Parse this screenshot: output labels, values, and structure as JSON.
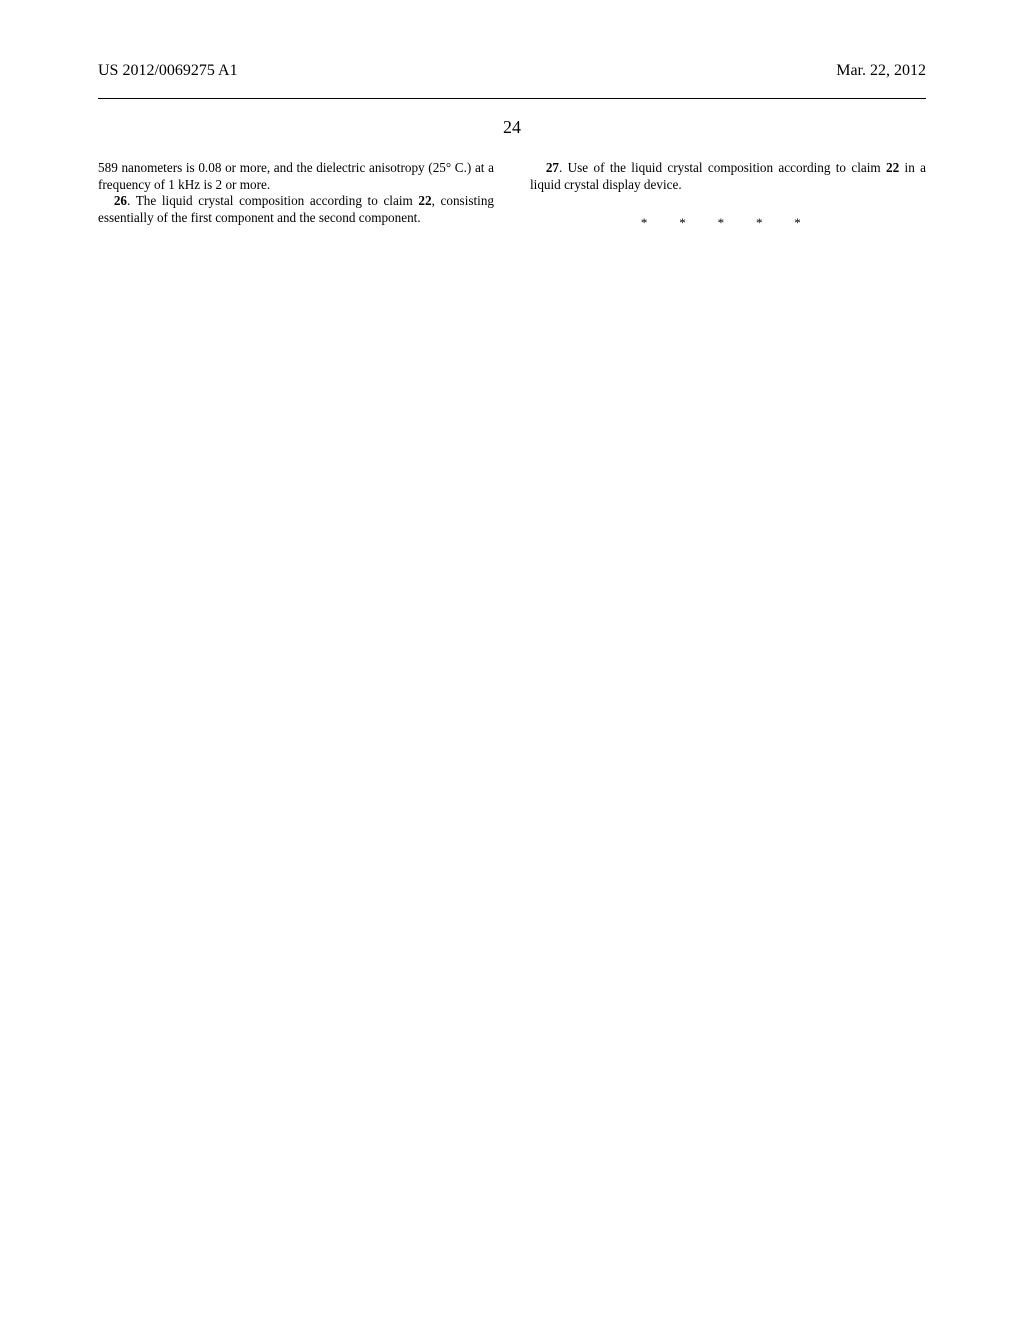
{
  "header": {
    "pub_number": "US 2012/0069275 A1",
    "date": "Mar. 22, 2012"
  },
  "page_number": "24",
  "left_column": {
    "p1": "589 nanometers is 0.08 or more, and the dielectric anisotropy (25° C.) at a frequency of 1 kHz is 2 or more.",
    "claim26_num": "26",
    "claim26_text": ". The liquid crystal composition according to claim ",
    "claim26_ref": "22",
    "claim26_tail": ", consisting essentially of the first component and the second component."
  },
  "right_column": {
    "claim27_num": "27",
    "claim27_text": ". Use of the liquid crystal composition according to claim ",
    "claim27_ref": "22",
    "claim27_tail": " in a liquid crystal display device."
  },
  "end_marks": "* * * * *"
}
